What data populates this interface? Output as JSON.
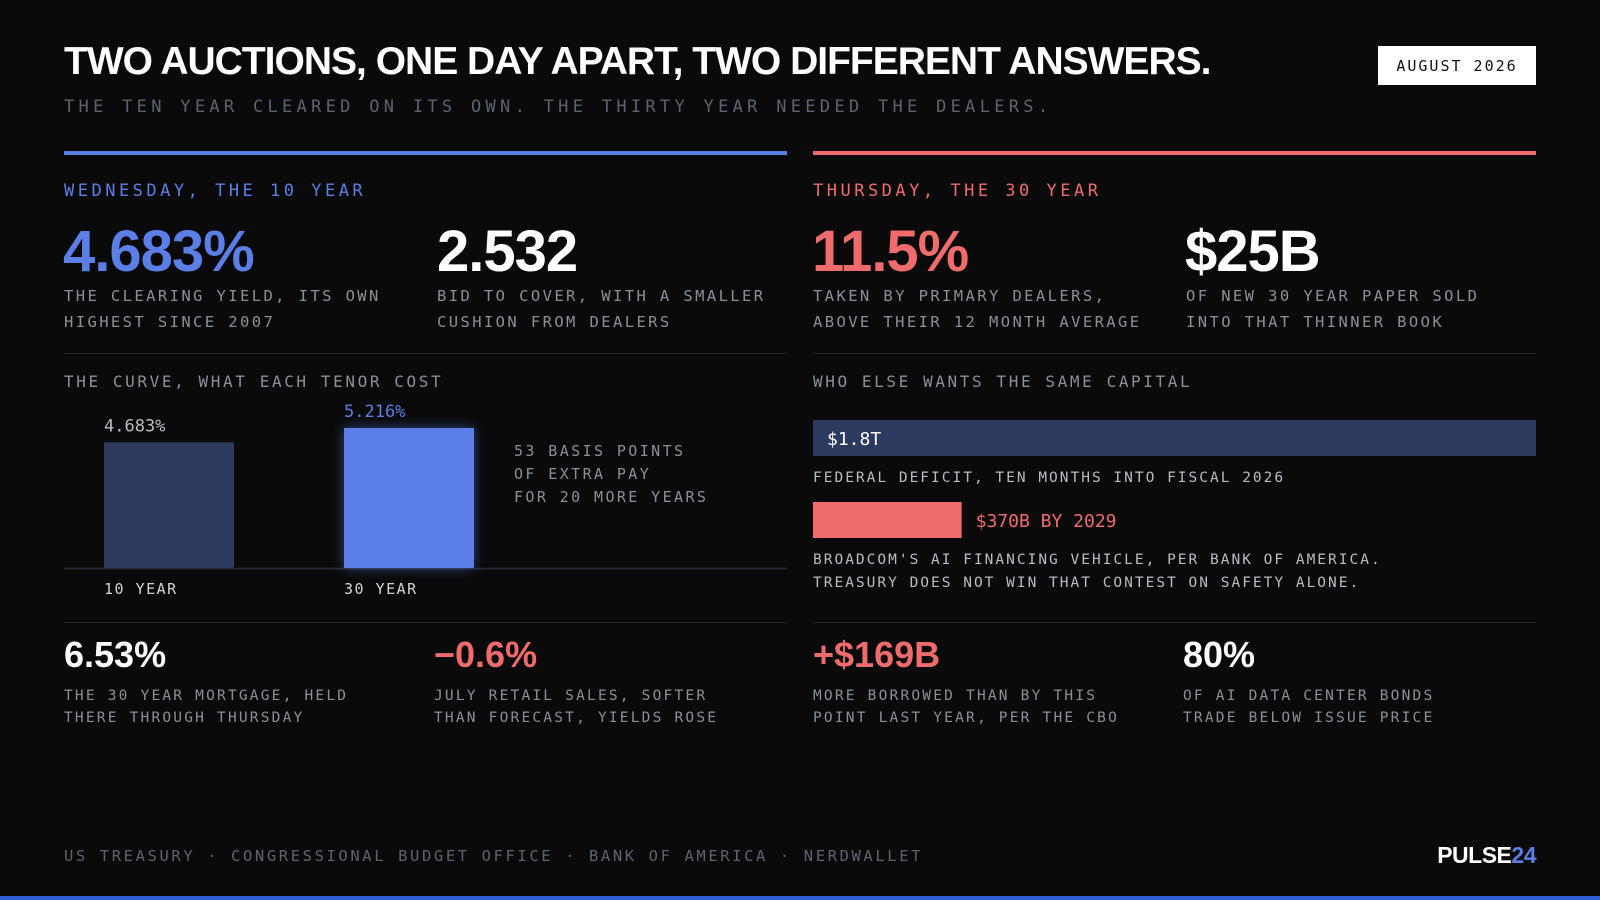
{
  "header": {
    "title": "TWO AUCTIONS, ONE DAY APART, TWO DIFFERENT ANSWERS.",
    "subtitle": "THE TEN YEAR CLEARED ON ITS OWN. THE THIRTY YEAR NEEDED THE DEALERS.",
    "date": "AUGUST 2026"
  },
  "left": {
    "label": "WEDNESDAY, THE 10 YEAR",
    "stats": [
      {
        "value": "4.683%",
        "lines": [
          "THE CLEARING YIELD, ITS OWN",
          "HIGHEST SINCE 2007"
        ]
      },
      {
        "value": "2.532",
        "lines": [
          "BID TO COVER, WITH A SMALLER",
          "CUSHION FROM DEALERS"
        ]
      }
    ],
    "chart": {
      "title": "THE CURVE, WHAT EACH TENOR COST",
      "categories": [
        "10 YEAR",
        "30 YEAR"
      ],
      "values": [
        4.683,
        5.216
      ],
      "value_labels": [
        "4.683%",
        "5.216%"
      ],
      "colors": [
        "#2b3a5e",
        "#5b7fe6"
      ],
      "note": [
        "53 BASIS POINTS",
        "OF EXTRA PAY",
        "FOR 20 MORE YEARS"
      ]
    },
    "bottom": [
      {
        "value": "6.53%",
        "lines": [
          "THE 30 YEAR MORTGAGE, HELD",
          "THERE THROUGH THURSDAY"
        ]
      },
      {
        "value": "−0.6%",
        "lines": [
          "JULY RETAIL SALES, SOFTER",
          "THAN FORECAST, YIELDS ROSE"
        ]
      }
    ]
  },
  "right": {
    "label": "THURSDAY, THE 30 YEAR",
    "stats": [
      {
        "value": "11.5%",
        "lines": [
          "TAKEN BY PRIMARY DEALERS,",
          "ABOVE THEIR 12 MONTH AVERAGE"
        ]
      },
      {
        "value": "$25B",
        "lines": [
          "OF NEW 30 YEAR PAPER SOLD",
          "INTO THAT THINNER BOOK"
        ]
      }
    ],
    "chart": {
      "title": "WHO ELSE WANTS THE SAME CAPITAL",
      "values": [
        1800,
        370
      ],
      "value_labels": [
        "$1.8T",
        "$370B BY 2029"
      ],
      "colors": [
        "#2b3a5e",
        "#f06b6b"
      ],
      "captions": [
        [
          "FEDERAL DEFICIT, TEN MONTHS INTO FISCAL 2026"
        ],
        [
          "BROADCOM'S AI FINANCING VEHICLE, PER BANK OF AMERICA.",
          "TREASURY DOES NOT WIN THAT CONTEST ON SAFETY ALONE."
        ]
      ]
    },
    "bottom": [
      {
        "value": "+$169B",
        "lines": [
          "MORE BORROWED THAN BY THIS",
          "POINT LAST YEAR, PER THE CBO"
        ]
      },
      {
        "value": "80%",
        "lines": [
          "OF AI DATA CENTER BONDS",
          "TRADE BELOW ISSUE PRICE"
        ]
      }
    ]
  },
  "footer": {
    "sources": "US TREASURY · CONGRESSIONAL BUDGET OFFICE · BANK OF AMERICA · NERDWALLET",
    "brand": "PULSE",
    "brand_num": "24"
  }
}
